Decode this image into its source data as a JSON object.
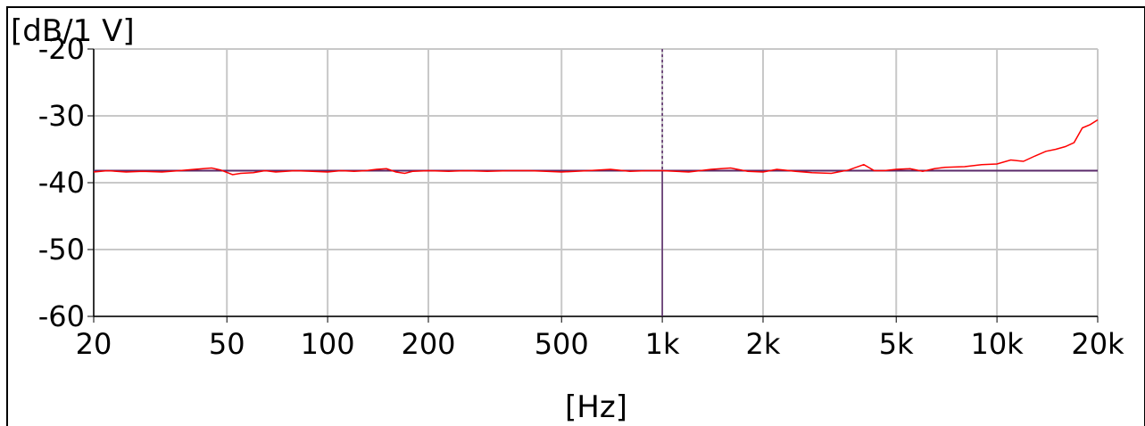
{
  "chart_data": {
    "type": "line",
    "title": "",
    "xlabel": "[Hz]",
    "ylabel": "[dB/1 V]",
    "x_scale": "log",
    "xlim": [
      20,
      20000
    ],
    "ylim": [
      -60,
      -20
    ],
    "grid": true,
    "x_ticks": [
      {
        "value": 20,
        "label": "20"
      },
      {
        "value": 50,
        "label": "50"
      },
      {
        "value": 100,
        "label": "100"
      },
      {
        "value": 200,
        "label": "200"
      },
      {
        "value": 500,
        "label": "500"
      },
      {
        "value": 1000,
        "label": "1k"
      },
      {
        "value": 2000,
        "label": "2k"
      },
      {
        "value": 5000,
        "label": "5k"
      },
      {
        "value": 10000,
        "label": "10k"
      },
      {
        "value": 20000,
        "label": "20k"
      }
    ],
    "y_ticks": [
      {
        "value": -20,
        "label": "-20"
      },
      {
        "value": -30,
        "label": "-30"
      },
      {
        "value": -40,
        "label": "-40"
      },
      {
        "value": -50,
        "label": "-50"
      },
      {
        "value": -60,
        "label": "-60"
      }
    ],
    "reference": {
      "level": -38.2,
      "cursor_freq": 1000,
      "color": "#5a2a6a"
    },
    "series": [
      {
        "color": "#ff0000",
        "x": [
          20,
          22,
          25,
          28,
          32,
          36,
          40,
          45,
          48,
          52,
          55,
          60,
          65,
          70,
          80,
          90,
          100,
          110,
          120,
          130,
          140,
          150,
          160,
          170,
          180,
          200,
          230,
          260,
          300,
          350,
          400,
          450,
          500,
          600,
          700,
          800,
          900,
          1000,
          1100,
          1200,
          1400,
          1600,
          1800,
          2000,
          2200,
          2500,
          2800,
          3200,
          3600,
          4000,
          4300,
          4600,
          5000,
          5500,
          6000,
          6500,
          7000,
          8000,
          9000,
          10000,
          11000,
          12000,
          13000,
          14000,
          15000,
          16000,
          17000,
          18000,
          19000,
          20000
        ],
        "y": [
          -38.4,
          -38.2,
          -38.4,
          -38.3,
          -38.4,
          -38.2,
          -38.0,
          -37.8,
          -38.1,
          -38.8,
          -38.6,
          -38.5,
          -38.2,
          -38.4,
          -38.2,
          -38.3,
          -38.4,
          -38.2,
          -38.3,
          -38.2,
          -38.0,
          -37.9,
          -38.4,
          -38.6,
          -38.3,
          -38.2,
          -38.3,
          -38.2,
          -38.3,
          -38.2,
          -38.2,
          -38.3,
          -38.4,
          -38.2,
          -38.0,
          -38.3,
          -38.2,
          -38.2,
          -38.3,
          -38.4,
          -38.0,
          -37.8,
          -38.3,
          -38.4,
          -38.0,
          -38.3,
          -38.5,
          -38.6,
          -38.1,
          -37.3,
          -38.2,
          -38.2,
          -38.0,
          -37.9,
          -38.3,
          -37.9,
          -37.7,
          -37.6,
          -37.3,
          -37.2,
          -36.6,
          -36.8,
          -36.0,
          -35.3,
          -35.0,
          -34.6,
          -34.0,
          -31.8,
          -31.3,
          -30.6
        ]
      }
    ]
  }
}
